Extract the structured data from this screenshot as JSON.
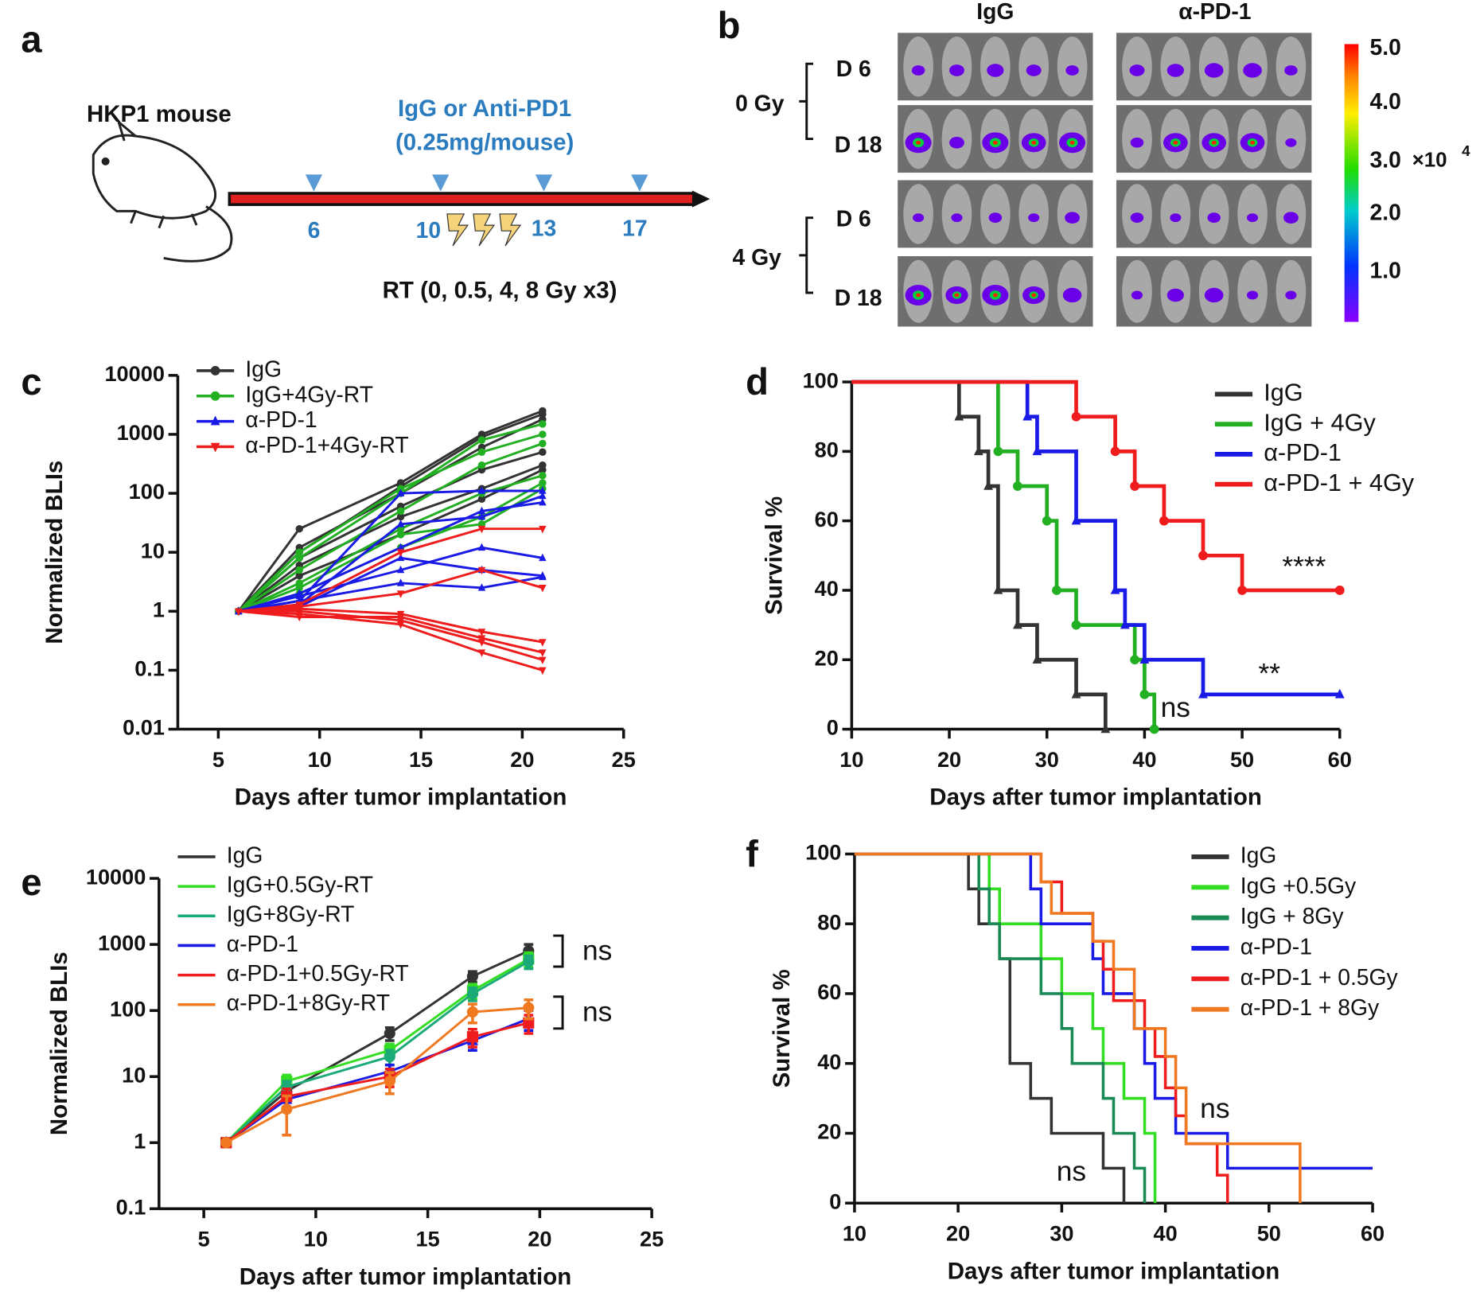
{
  "panel_labels": [
    "a",
    "b",
    "c",
    "d",
    "e",
    "f"
  ],
  "panel_a": {
    "subject": "HKP1 mouse",
    "treatment": "IgG or Anti-PD1",
    "dose": "(0.25mg/mouse)",
    "days": [
      "6",
      "10",
      "13",
      "17"
    ],
    "radiation": "RT  (0, 0.5, 4, 8 Gy x3)"
  },
  "panel_b": {
    "columns": [
      "IgG",
      "α-PD-1"
    ],
    "doses": [
      "0 Gy",
      "4 Gy"
    ],
    "days": [
      "D 6",
      "D 18",
      "D 6",
      "D 18"
    ],
    "colorbar_ticks": [
      "5.0",
      "4.0",
      "3.0",
      "2.0",
      "1.0"
    ],
    "colorbar_unit": "×10",
    "colorbar_exponent": "4"
  },
  "chart_data": [
    {
      "type": "line",
      "x_label": "Days after tumor implantation",
      "y_label": "Normalized BLIs",
      "log_y": true,
      "x": [
        6,
        9,
        14,
        18,
        21
      ],
      "xlim": [
        3,
        25
      ],
      "xticks": [
        5,
        10,
        15,
        20,
        25
      ],
      "ylim": [
        0.01,
        10000
      ],
      "yticks": [
        0.01,
        0.1,
        1,
        10,
        100,
        1000,
        10000
      ],
      "legend": "upper left",
      "series": [
        {
          "name": "IgG",
          "color": "#333333",
          "marker": "circle",
          "values": [
            [
              1,
              25,
              150,
              1000,
              2500
            ],
            [
              1,
              12,
              100,
              600,
              1800
            ],
            [
              1,
              8,
              60,
              250,
              500
            ],
            [
              1,
              6,
              40,
              120,
              300
            ],
            [
              1,
              10,
              130,
              900,
              2200
            ],
            [
              1,
              4,
              20,
              80,
              250
            ]
          ]
        },
        {
          "name": "IgG+4Gy-RT",
          "color": "#22b022",
          "marker": "circle",
          "values": [
            [
              1,
              10,
              120,
              500,
              1000
            ],
            [
              1,
              3,
              25,
              100,
              200
            ],
            [
              1,
              5,
              50,
              300,
              700
            ],
            [
              1,
              2,
              12,
              40,
              150
            ],
            [
              1,
              8,
              100,
              800,
              1500
            ],
            [
              1,
              2.5,
              20,
              30,
              120
            ]
          ]
        },
        {
          "name": "α-PD-1",
          "color": "#1a1ae6",
          "marker": "triangle",
          "values": [
            [
              1,
              1.5,
              100,
              110,
              110
            ],
            [
              1,
              1.2,
              8,
              5,
              4
            ],
            [
              1,
              2,
              12,
              50,
              70
            ],
            [
              1,
              1.5,
              3,
              2.5,
              3.8
            ],
            [
              1,
              1.3,
              30,
              40,
              90
            ],
            [
              1,
              1.8,
              5,
              12,
              8
            ]
          ]
        },
        {
          "name": "α-PD-1+4Gy-RT",
          "color": "#ee1c1c",
          "marker": "triangle-down",
          "values": [
            [
              1,
              1.1,
              0.9,
              0.45,
              0.3
            ],
            [
              1,
              0.9,
              0.6,
              0.2,
              0.1
            ],
            [
              1,
              1.3,
              10,
              25,
              25
            ],
            [
              1,
              1,
              0.7,
              0.3,
              0.15
            ],
            [
              1,
              1.2,
              2,
              5,
              2.5
            ],
            [
              1,
              0.8,
              0.8,
              0.35,
              0.2
            ]
          ]
        }
      ]
    },
    {
      "type": "step",
      "x_label": "Days after tumor implantation",
      "y_label": "Survival %",
      "xlim": [
        10,
        60
      ],
      "xticks": [
        10,
        20,
        30,
        40,
        50,
        60
      ],
      "ylim": [
        0,
        100
      ],
      "yticks": [
        0,
        20,
        40,
        60,
        80,
        100
      ],
      "legend": "upper right",
      "series": [
        {
          "name": "IgG",
          "color": "#333333",
          "marker": "triangle",
          "x": [
            10,
            21,
            23,
            24,
            25,
            27,
            29,
            33,
            36
          ],
          "values": [
            100,
            90,
            80,
            70,
            40,
            30,
            20,
            10,
            0
          ]
        },
        {
          "name": "IgG + 4Gy",
          "color": "#22b022",
          "marker": "circle",
          "x": [
            10,
            25,
            27,
            30,
            31,
            33,
            39,
            40,
            41
          ],
          "values": [
            100,
            80,
            70,
            60,
            40,
            30,
            20,
            10,
            0
          ]
        },
        {
          "name": "α-PD-1",
          "color": "#1a1ae6",
          "marker": "triangle",
          "x": [
            10,
            28,
            29,
            33,
            37,
            38,
            40,
            46,
            60
          ],
          "values": [
            100,
            90,
            80,
            60,
            40,
            30,
            20,
            10,
            10
          ]
        },
        {
          "name": "α-PD-1 + 4Gy",
          "color": "#ee1c1c",
          "marker": "circle",
          "x": [
            10,
            33,
            37,
            39,
            42,
            46,
            50,
            60
          ],
          "values": [
            100,
            90,
            80,
            70,
            60,
            50,
            40,
            40
          ]
        }
      ],
      "annotations": [
        "****",
        "**",
        "ns"
      ]
    },
    {
      "type": "line",
      "x_label": "Days after tumor implantation",
      "y_label": "Normalized BLIs",
      "log_y": true,
      "x": [
        6,
        8.7,
        13.3,
        17,
        19.5
      ],
      "xlim": [
        3,
        25
      ],
      "xticks": [
        5,
        10,
        15,
        20,
        25
      ],
      "ylim": [
        0.1,
        10000
      ],
      "yticks": [
        0.1,
        1,
        10,
        100,
        1000,
        10000
      ],
      "legend": "upper left",
      "series": [
        {
          "name": "IgG",
          "color": "#333333",
          "marker": "circle",
          "values": [
            1,
            6,
            45,
            330,
            800
          ],
          "errors": [
            0,
            1.5,
            10,
            60,
            200
          ]
        },
        {
          "name": "IgG+0.5Gy-RT",
          "color": "#33dd22",
          "marker": "square",
          "values": [
            1,
            8.5,
            25,
            200,
            600
          ],
          "errors": [
            0,
            2,
            6,
            50,
            150
          ]
        },
        {
          "name": "IgG+8Gy-RT",
          "color": "#1aaa77",
          "marker": "circle",
          "values": [
            1,
            7,
            20,
            180,
            550
          ],
          "errors": [
            0,
            1.5,
            5,
            40,
            120
          ]
        },
        {
          "name": "α-PD-1",
          "color": "#1a1ae6",
          "marker": "triangle",
          "values": [
            1,
            4.5,
            12,
            35,
            75
          ],
          "errors": [
            0,
            1.2,
            3,
            10,
            25
          ]
        },
        {
          "name": "α-PD-1+0.5Gy-RT",
          "color": "#ee1c1c",
          "marker": "square",
          "values": [
            1,
            5,
            10,
            40,
            65
          ],
          "errors": [
            0,
            1.5,
            3,
            12,
            20
          ]
        },
        {
          "name": "α-PD-1+8Gy-RT",
          "color": "#f07820",
          "marker": "circle",
          "values": [
            1,
            3.2,
            8.5,
            95,
            110
          ],
          "errors": [
            0,
            1.9,
            3,
            30,
            35
          ]
        }
      ],
      "annotations": [
        "ns",
        "ns"
      ]
    },
    {
      "type": "step",
      "x_label": "Days after tumor implantation",
      "y_label": "Survival %",
      "xlim": [
        10,
        60
      ],
      "xticks": [
        10,
        20,
        30,
        40,
        50,
        60
      ],
      "ylim": [
        0,
        100
      ],
      "yticks": [
        0,
        20,
        40,
        60,
        80,
        100
      ],
      "legend": "upper right",
      "series": [
        {
          "name": "IgG",
          "color": "#333333",
          "x": [
            10,
            21,
            22,
            24,
            25,
            27,
            29,
            34,
            36
          ],
          "values": [
            100,
            90,
            80,
            70,
            40,
            30,
            20,
            10,
            0
          ]
        },
        {
          "name": "IgG +0.5Gy",
          "color": "#33dd22",
          "x": [
            10,
            23,
            24,
            28,
            30,
            33,
            34,
            36,
            38,
            39
          ],
          "values": [
            100,
            90,
            80,
            70,
            60,
            50,
            40,
            30,
            20,
            0
          ]
        },
        {
          "name": "IgG + 8Gy",
          "color": "#1a8a55",
          "x": [
            10,
            22,
            23,
            24,
            28,
            30,
            31,
            34,
            35,
            37,
            38
          ],
          "values": [
            100,
            90,
            80,
            70,
            60,
            50,
            40,
            30,
            20,
            10,
            0
          ]
        },
        {
          "name": "α-PD-1",
          "color": "#1a1ae6",
          "x": [
            10,
            27,
            28,
            33,
            34,
            37,
            38,
            39,
            41,
            46,
            60
          ],
          "values": [
            100,
            90,
            80,
            70,
            60,
            50,
            40,
            30,
            20,
            10,
            10
          ]
        },
        {
          "name": "α-PD-1 + 0.5Gy",
          "color": "#ee1c1c",
          "x": [
            10,
            28,
            30,
            33,
            34,
            35,
            38,
            39,
            40,
            41,
            42,
            45,
            46
          ],
          "values": [
            100,
            92,
            83,
            75,
            67,
            58,
            50,
            42,
            33,
            25,
            17,
            8,
            0
          ]
        },
        {
          "name": "α-PD-1 + 8Gy",
          "color": "#f07820",
          "x": [
            10,
            28,
            29,
            33,
            35,
            37,
            40,
            41,
            42,
            53
          ],
          "values": [
            100,
            92,
            83,
            75,
            67,
            50,
            42,
            33,
            17,
            0
          ]
        }
      ],
      "annotations": [
        "ns",
        "ns"
      ]
    }
  ]
}
